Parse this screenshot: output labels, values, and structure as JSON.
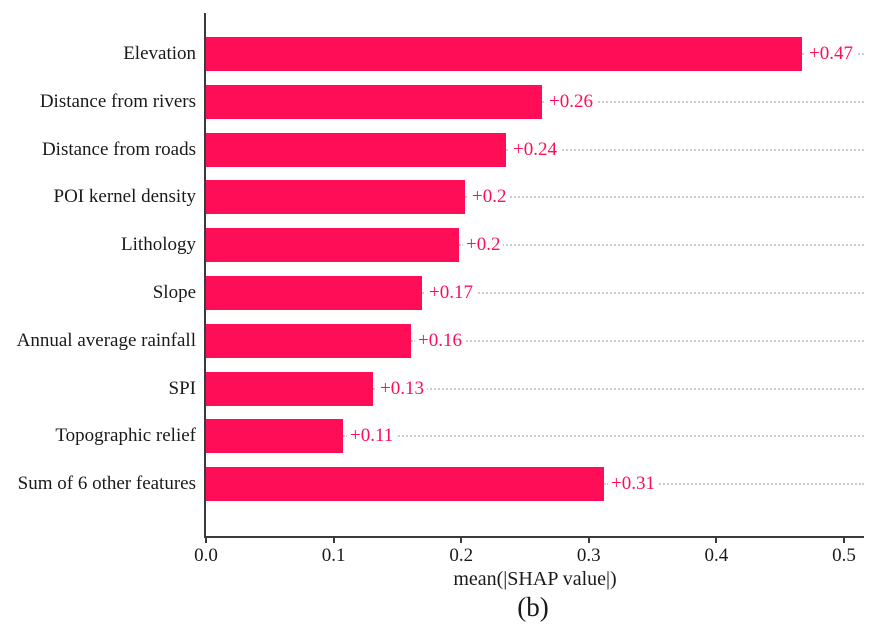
{
  "caption": "(b)",
  "chart_data": {
    "type": "bar",
    "orientation": "horizontal",
    "title": "",
    "xlabel": "mean(|SHAP value|)",
    "ylabel": "",
    "xlim": [
      0,
      0.516
    ],
    "xticks": [
      "0.0",
      "0.1",
      "0.2",
      "0.3",
      "0.4",
      "0.5"
    ],
    "grid": "dotted row guidelines from bar end to right edge",
    "legend": "none",
    "bar_color": "#ff0d57",
    "value_label_color": "#ff0d57",
    "axis_color": "#3a3a3a",
    "gridline_color": "#cbcbcb",
    "categories": [
      "Elevation",
      "Distance from rivers",
      "Distance from roads",
      "POI kernel density",
      "Lithology",
      "Slope",
      "Annual average rainfall",
      "SPI",
      "Topographic relief",
      "Sum of 6 other features"
    ],
    "values": [
      0.467,
      0.263,
      0.235,
      0.203,
      0.198,
      0.169,
      0.161,
      0.131,
      0.107,
      0.312
    ],
    "value_labels": [
      "+0.47",
      "+0.26",
      "+0.24",
      "+0.2",
      "+0.2",
      "+0.17",
      "+0.16",
      "+0.13",
      "+0.11",
      "+0.31"
    ]
  }
}
